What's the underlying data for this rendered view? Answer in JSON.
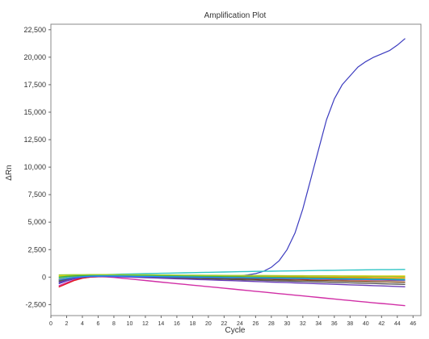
{
  "chart_data": {
    "type": "line",
    "title": "Amplification Plot",
    "xlabel": "Cycle",
    "ylabel": "ΔRn",
    "xlim": [
      0,
      47
    ],
    "ylim": [
      -3500,
      23000
    ],
    "x_ticks": [
      0,
      2,
      4,
      6,
      8,
      10,
      12,
      14,
      16,
      18,
      20,
      22,
      24,
      26,
      28,
      30,
      32,
      34,
      36,
      38,
      40,
      42,
      44,
      46
    ],
    "y_ticks": [
      -2500,
      0,
      2500,
      5000,
      7500,
      10000,
      12500,
      15000,
      17500,
      20000,
      22500
    ],
    "y_tick_labels": [
      "-2,500",
      "0",
      "2,500",
      "5,000",
      "7,500",
      "10,000",
      "12,500",
      "15,000",
      "17,500",
      "20,000",
      "22,500"
    ],
    "grid": true,
    "x": [
      1,
      2,
      3,
      4,
      5,
      6,
      7,
      8,
      9,
      10,
      11,
      12,
      13,
      14,
      15,
      16,
      17,
      18,
      19,
      20,
      21,
      22,
      23,
      24,
      25,
      26,
      27,
      28,
      29,
      30,
      31,
      32,
      33,
      34,
      35,
      36,
      37,
      38,
      39,
      40,
      41,
      42,
      43,
      44,
      45
    ],
    "series": [
      {
        "color": "#3b3bbf",
        "values": [
          -600,
          -350,
          -150,
          -20,
          50,
          80,
          80,
          60,
          40,
          20,
          0,
          -20,
          -40,
          -60,
          -80,
          -100,
          -110,
          -100,
          -80,
          -50,
          -20,
          20,
          60,
          120,
          200,
          320,
          520,
          900,
          1500,
          2500,
          4000,
          6200,
          8900,
          11600,
          14300,
          16200,
          17500,
          18300,
          19100,
          19600,
          20000,
          20300,
          20600,
          21100,
          21700
        ]
      },
      {
        "color": "#2ec4c4",
        "values": [
          -100,
          0,
          80,
          140,
          180,
          210,
          230,
          250,
          270,
          290,
          300,
          320,
          330,
          345,
          360,
          375,
          390,
          405,
          420,
          435,
          450,
          465,
          480,
          495,
          510,
          520,
          530,
          540,
          550,
          560,
          570,
          580,
          590,
          600,
          610,
          620,
          630,
          640,
          650,
          660,
          670,
          675,
          680,
          690,
          700
        ]
      },
      {
        "color": "#d12fa6",
        "values": [
          -800,
          -500,
          -250,
          -80,
          0,
          30,
          20,
          -30,
          -100,
          -170,
          -240,
          -310,
          -380,
          -450,
          -520,
          -590,
          -660,
          -730,
          -800,
          -870,
          -940,
          -1010,
          -1080,
          -1150,
          -1220,
          -1290,
          -1360,
          -1430,
          -1500,
          -1570,
          -1640,
          -1710,
          -1780,
          -1850,
          -1920,
          -1990,
          -2060,
          -2130,
          -2200,
          -2270,
          -2340,
          -2400,
          -2460,
          -2530,
          -2600
        ]
      },
      {
        "color": "#e31a1a",
        "values": [
          -900,
          -600,
          -300,
          -100,
          0,
          40,
          60,
          60,
          50,
          40,
          30,
          20,
          10,
          0,
          -10,
          -20,
          -30,
          -40,
          -50,
          -60,
          -70,
          -80,
          -90,
          -100,
          -110,
          -120,
          -130,
          -140,
          -150,
          -160,
          -170,
          -180,
          -190,
          -200,
          -210,
          -220,
          -230,
          -240,
          -250,
          -260,
          -270,
          -280,
          -290,
          -300,
          -310
        ]
      },
      {
        "color": "#ff8c00",
        "values": [
          -200,
          -100,
          0,
          60,
          100,
          120,
          130,
          130,
          125,
          120,
          115,
          110,
          105,
          100,
          95,
          90,
          85,
          80,
          75,
          70,
          65,
          60,
          55,
          50,
          45,
          40,
          35,
          30,
          25,
          20,
          15,
          10,
          5,
          0,
          -5,
          -10,
          -15,
          -20,
          -25,
          -30,
          -35,
          -40,
          -45,
          -50,
          -55
        ]
      },
      {
        "color": "#e8d000",
        "values": [
          100,
          120,
          140,
          150,
          160,
          165,
          170,
          170,
          170,
          168,
          166,
          164,
          162,
          160,
          158,
          156,
          154,
          152,
          150,
          148,
          146,
          144,
          142,
          140,
          138,
          136,
          134,
          132,
          130,
          128,
          126,
          124,
          122,
          120,
          118,
          116,
          114,
          112,
          110,
          108,
          106,
          104,
          102,
          100,
          98
        ]
      },
      {
        "color": "#3cb043",
        "values": [
          0,
          60,
          110,
          140,
          160,
          170,
          175,
          175,
          170,
          160,
          150,
          140,
          130,
          120,
          110,
          100,
          90,
          80,
          70,
          60,
          50,
          40,
          30,
          20,
          10,
          0,
          -10,
          -20,
          -30,
          -40,
          -50,
          -60,
          -70,
          -80,
          -90,
          -100,
          -110,
          -120,
          -130,
          -140,
          -150,
          -160,
          -170,
          -180,
          -190
        ]
      },
      {
        "color": "#7a4a1e",
        "values": [
          -300,
          -150,
          -50,
          20,
          60,
          80,
          85,
          80,
          70,
          55,
          40,
          25,
          10,
          -5,
          -20,
          -35,
          -50,
          -65,
          -80,
          -95,
          -110,
          -125,
          -140,
          -155,
          -170,
          -185,
          -200,
          -215,
          -230,
          -245,
          -260,
          -275,
          -290,
          -305,
          -320,
          -335,
          -350,
          -365,
          -380,
          -395,
          -410,
          -425,
          -440,
          -455,
          -470
        ]
      },
      {
        "color": "#555555",
        "values": [
          -400,
          -220,
          -80,
          10,
          60,
          80,
          80,
          70,
          55,
          40,
          20,
          0,
          -20,
          -40,
          -60,
          -80,
          -100,
          -120,
          -140,
          -160,
          -180,
          -200,
          -220,
          -240,
          -260,
          -280,
          -300,
          -320,
          -340,
          -360,
          -380,
          -400,
          -420,
          -440,
          -460,
          -480,
          -500,
          -520,
          -540,
          -560,
          -580,
          -600,
          -620,
          -640,
          -660
        ]
      },
      {
        "color": "#6a3db8",
        "values": [
          -500,
          -300,
          -120,
          -10,
          40,
          60,
          55,
          40,
          20,
          0,
          -25,
          -50,
          -75,
          -100,
          -125,
          -150,
          -175,
          -200,
          -225,
          -250,
          -275,
          -300,
          -325,
          -350,
          -375,
          -400,
          -425,
          -450,
          -475,
          -500,
          -525,
          -550,
          -575,
          -600,
          -625,
          -650,
          -675,
          -700,
          -725,
          -750,
          -775,
          -800,
          -825,
          -850,
          -880
        ]
      },
      {
        "color": "#1e90ff",
        "values": [
          -250,
          -120,
          -20,
          40,
          80,
          100,
          105,
          100,
          90,
          80,
          70,
          60,
          50,
          40,
          30,
          20,
          10,
          0,
          -10,
          -20,
          -30,
          -40,
          -50,
          -60,
          -70,
          -80,
          -90,
          -100,
          -110,
          -120,
          -130,
          -140,
          -150,
          -160,
          -170,
          -180,
          -190,
          -200,
          -210,
          -220,
          -230,
          -240,
          -250,
          -260,
          -270
        ]
      },
      {
        "color": "#9acd32",
        "values": [
          200,
          210,
          220,
          225,
          230,
          230,
          228,
          225,
          220,
          215,
          210,
          205,
          200,
          195,
          190,
          185,
          180,
          175,
          170,
          165,
          160,
          155,
          150,
          145,
          140,
          135,
          130,
          125,
          120,
          115,
          110,
          105,
          100,
          95,
          90,
          85,
          80,
          75,
          70,
          65,
          60,
          55,
          50,
          45,
          40
        ]
      }
    ]
  }
}
